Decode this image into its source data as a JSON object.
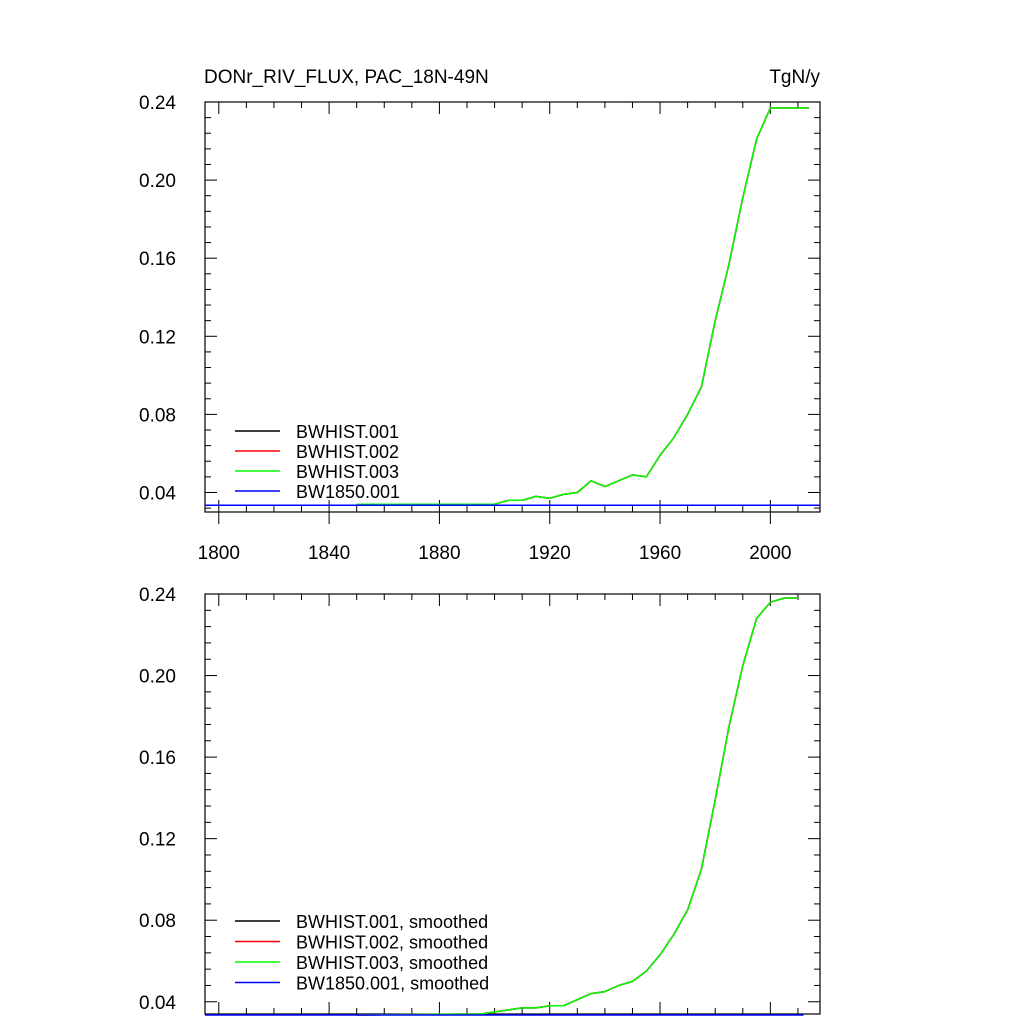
{
  "figure": {
    "title_left": "DONr_RIV_FLUX, PAC_18N-49N",
    "title_right": "TgN/y"
  },
  "chart_data": [
    {
      "type": "line",
      "title": "DONr_RIV_FLUX, PAC_18N-49N",
      "units": "TgN/y",
      "xlim": [
        1795,
        2018
      ],
      "ylim": [
        0.03,
        0.24
      ],
      "x_ticks": [
        1800,
        1840,
        1880,
        1920,
        1960,
        2000
      ],
      "x_tick_labels": [
        "1800",
        "1840",
        "1880",
        "1920",
        "1960",
        "2000"
      ],
      "y_ticks": [
        0.04,
        0.08,
        0.12,
        0.16,
        0.2,
        0.24
      ],
      "y_tick_labels": [
        "0.04",
        "0.08",
        "0.12",
        "0.16",
        "0.20",
        "0.24"
      ],
      "legend_position": "bottom-left",
      "grid": false,
      "series": [
        {
          "name": "BWHIST.001",
          "color": "#000000",
          "x": [
            1850,
            1900,
            1905,
            1910,
            1915,
            1920,
            1925,
            1930,
            1935,
            1940,
            1945,
            1950,
            1955,
            1960,
            1965,
            1970,
            1975,
            1980,
            1985,
            1990,
            1995,
            2000,
            2005,
            2014
          ],
          "y": [
            0.034,
            0.034,
            0.036,
            0.036,
            0.038,
            0.037,
            0.039,
            0.04,
            0.046,
            0.043,
            0.046,
            0.049,
            0.048,
            0.059,
            0.068,
            0.08,
            0.094,
            0.128,
            0.157,
            0.191,
            0.221,
            0.237,
            0.237,
            0.237
          ]
        },
        {
          "name": "BWHIST.002",
          "color": "#ff0000",
          "x": [
            1850,
            1900,
            1905,
            1910,
            1915,
            1920,
            1925,
            1930,
            1935,
            1940,
            1945,
            1950,
            1955,
            1960,
            1965,
            1970,
            1975,
            1980,
            1985,
            1990,
            1995,
            2000,
            2005,
            2014
          ],
          "y": [
            0.034,
            0.034,
            0.036,
            0.036,
            0.038,
            0.037,
            0.039,
            0.04,
            0.046,
            0.043,
            0.046,
            0.049,
            0.048,
            0.059,
            0.068,
            0.08,
            0.094,
            0.128,
            0.157,
            0.191,
            0.221,
            0.237,
            0.237,
            0.237
          ]
        },
        {
          "name": "BWHIST.003",
          "color": "#00ff00",
          "x": [
            1850,
            1900,
            1905,
            1910,
            1915,
            1920,
            1925,
            1930,
            1935,
            1940,
            1945,
            1950,
            1955,
            1960,
            1965,
            1970,
            1975,
            1980,
            1985,
            1990,
            1995,
            2000,
            2005,
            2014
          ],
          "y": [
            0.034,
            0.034,
            0.036,
            0.036,
            0.038,
            0.037,
            0.039,
            0.04,
            0.046,
            0.043,
            0.046,
            0.049,
            0.048,
            0.059,
            0.068,
            0.08,
            0.094,
            0.128,
            0.157,
            0.191,
            0.221,
            0.237,
            0.237,
            0.237
          ]
        },
        {
          "name": "BW1850.001",
          "color": "#0000ff",
          "x": [
            1795,
            2018
          ],
          "y": [
            0.0335,
            0.0335
          ]
        }
      ]
    },
    {
      "type": "line",
      "xlim": [
        1795,
        2018
      ],
      "ylim": [
        0.034,
        0.24
      ],
      "x_ticks": [
        1800,
        1840,
        1880,
        1920,
        1960,
        2000
      ],
      "y_ticks": [
        0.04,
        0.08,
        0.12,
        0.16,
        0.2,
        0.24
      ],
      "y_tick_labels": [
        "0.04",
        "0.08",
        "0.12",
        "0.16",
        "0.20",
        "0.24"
      ],
      "legend_position": "bottom-left",
      "grid": false,
      "series": [
        {
          "name": "BWHIST.001, smoothed",
          "color": "#000000",
          "x": [
            1850,
            1895,
            1905,
            1910,
            1915,
            1920,
            1925,
            1930,
            1935,
            1940,
            1945,
            1950,
            1955,
            1960,
            1965,
            1970,
            1975,
            1980,
            1985,
            1990,
            1995,
            2000,
            2005,
            2010
          ],
          "y": [
            0.0335,
            0.034,
            0.036,
            0.037,
            0.037,
            0.038,
            0.038,
            0.041,
            0.044,
            0.045,
            0.048,
            0.05,
            0.055,
            0.063,
            0.073,
            0.085,
            0.105,
            0.139,
            0.175,
            0.205,
            0.228,
            0.236,
            0.238,
            0.238
          ]
        },
        {
          "name": "BWHIST.002, smoothed",
          "color": "#ff0000",
          "x": [
            1850,
            1895,
            1905,
            1910,
            1915,
            1920,
            1925,
            1930,
            1935,
            1940,
            1945,
            1950,
            1955,
            1960,
            1965,
            1970,
            1975,
            1980,
            1985,
            1990,
            1995,
            2000,
            2005,
            2010
          ],
          "y": [
            0.0335,
            0.034,
            0.036,
            0.037,
            0.037,
            0.038,
            0.038,
            0.041,
            0.044,
            0.045,
            0.048,
            0.05,
            0.055,
            0.063,
            0.073,
            0.085,
            0.105,
            0.139,
            0.175,
            0.205,
            0.228,
            0.236,
            0.238,
            0.238
          ]
        },
        {
          "name": "BWHIST.003, smoothed",
          "color": "#00ff00",
          "x": [
            1850,
            1895,
            1905,
            1910,
            1915,
            1920,
            1925,
            1930,
            1935,
            1940,
            1945,
            1950,
            1955,
            1960,
            1965,
            1970,
            1975,
            1980,
            1985,
            1990,
            1995,
            2000,
            2005,
            2010
          ],
          "y": [
            0.0335,
            0.034,
            0.036,
            0.037,
            0.037,
            0.038,
            0.038,
            0.041,
            0.044,
            0.045,
            0.048,
            0.05,
            0.055,
            0.063,
            0.073,
            0.085,
            0.105,
            0.139,
            0.175,
            0.205,
            0.228,
            0.236,
            0.238,
            0.238
          ]
        },
        {
          "name": "BW1850.001, smoothed",
          "color": "#0000ff",
          "x": [
            1795,
            2012
          ],
          "y": [
            0.0335,
            0.0335
          ]
        }
      ]
    }
  ]
}
